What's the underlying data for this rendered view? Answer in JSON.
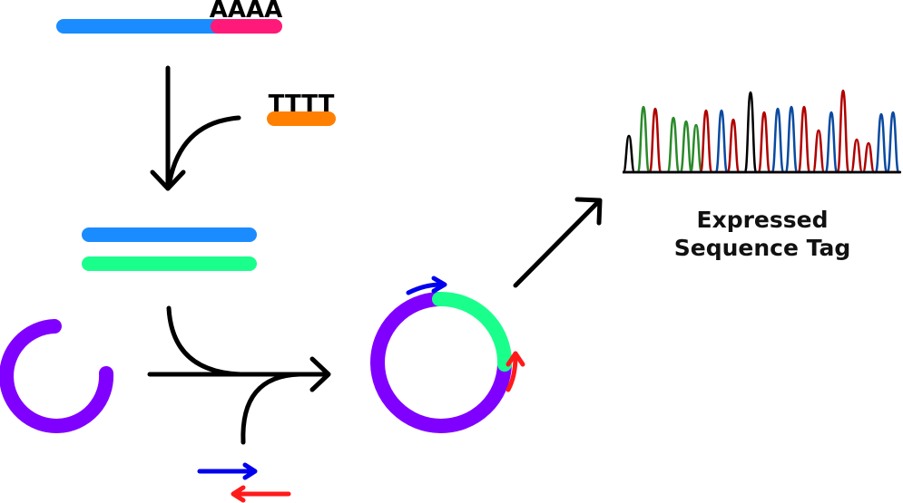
{
  "mrna": {
    "poly_a_label": "AAAA",
    "body_color": "#1a8cff",
    "tail_color": "#ff1a7a"
  },
  "primer": {
    "poly_t_label": "TTTT",
    "color": "#ff8000"
  },
  "cdna": {
    "top_color": "#1a8cff",
    "bottom_color": "#1aff8c"
  },
  "vector": {
    "color": "#8000ff",
    "insert_color": "#1aff8c"
  },
  "sequencing_primers": {
    "forward_color": "#0000ee",
    "reverse_color": "#ff1a1a"
  },
  "chromatogram": {
    "colors": [
      "#000000",
      "#2a8a2a",
      "#b00000",
      "#0a4aa0"
    ]
  },
  "caption": {
    "line1": "Expressed",
    "line2": "Sequence Tag"
  }
}
